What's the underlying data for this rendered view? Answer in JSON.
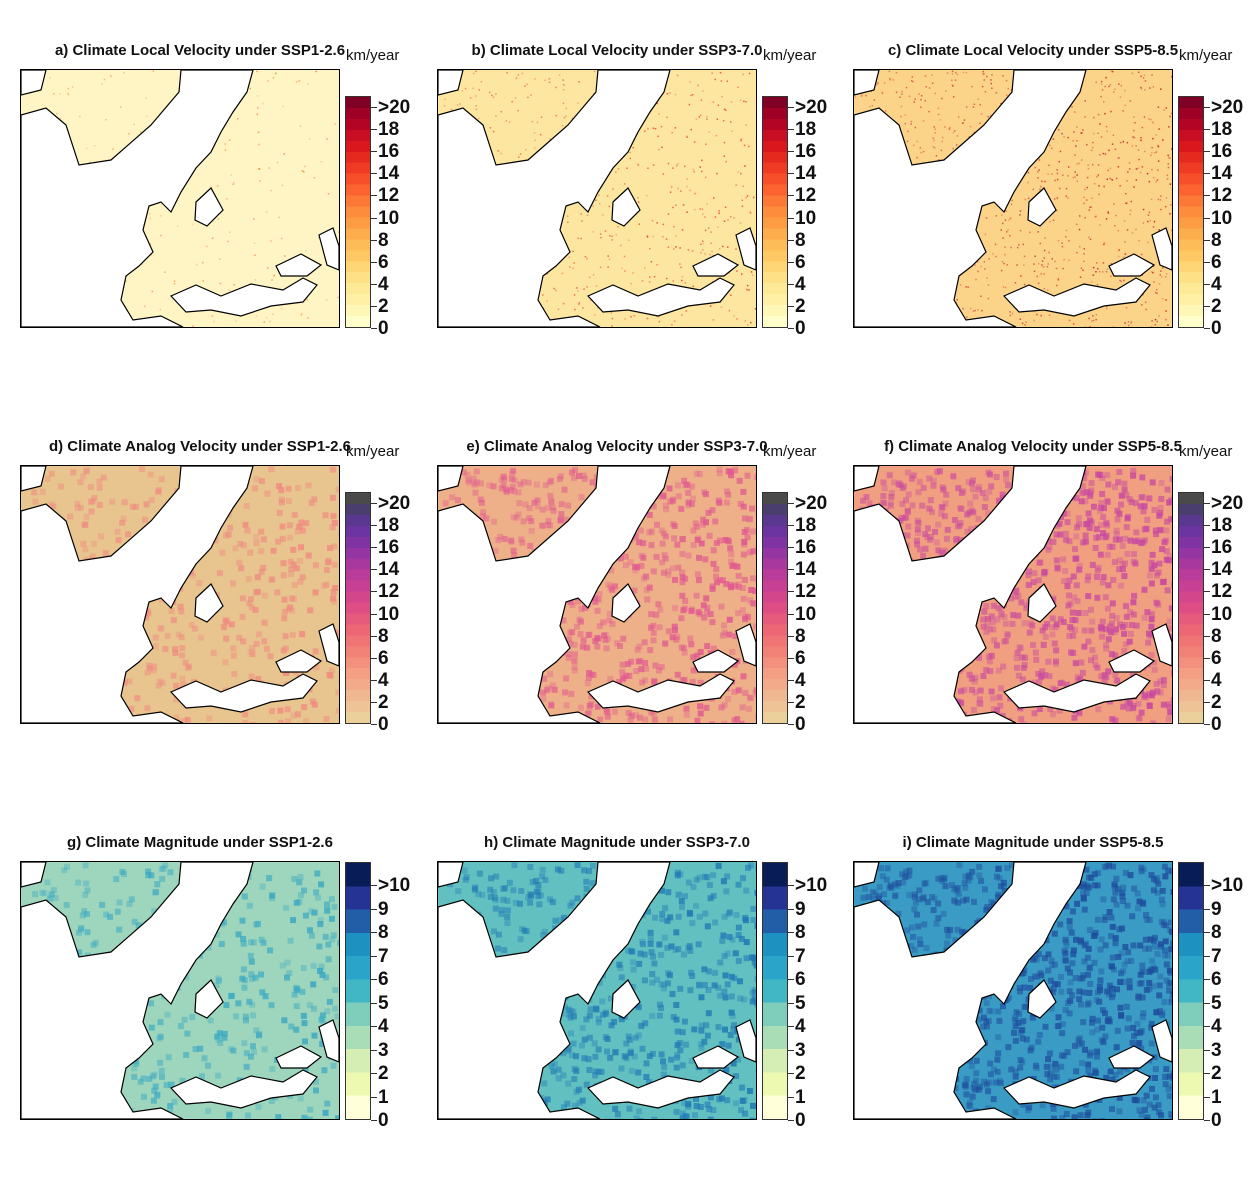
{
  "panels": [
    {
      "title": "a) Climate Local Velocity under SSP1-2.6",
      "unit": "km/year",
      "scale": "local",
      "land": "#fff5c4",
      "hot": "#f08030",
      "level": 0.15
    },
    {
      "title": "b) Climate Local Velocity under SSP3-7.0",
      "unit": "km/year",
      "scale": "local",
      "land": "#fde6a0",
      "hot": "#e03020",
      "level": 0.45
    },
    {
      "title": "c) Climate Local Velocity under SSP5-8.5",
      "unit": "km/year",
      "scale": "local",
      "land": "#fbd48a",
      "hot": "#c01020",
      "level": 0.7
    },
    {
      "title": "d) Climate Analog Velocity under SSP1-2.6",
      "unit": "km/year",
      "scale": "analog",
      "land": "#e8c48e",
      "hot": "#f08a80",
      "level": 0.3
    },
    {
      "title": "e) Climate Analog Velocity under SSP3-7.0",
      "unit": "km/year",
      "scale": "analog",
      "land": "#eeb088",
      "hot": "#e05890",
      "level": 0.55
    },
    {
      "title": "f) Climate Analog Velocity under SSP5-8.5",
      "unit": "km/year",
      "scale": "analog",
      "land": "#f0a080",
      "hot": "#c848a0",
      "level": 0.7
    },
    {
      "title": "g) Climate Magnitude under SSP1-2.6",
      "unit": "",
      "scale": "magnitude",
      "land": "#9dd6bd",
      "hot": "#3aa8c2",
      "level": 0.3
    },
    {
      "title": "h) Climate Magnitude under SSP3-7.0",
      "unit": "",
      "scale": "magnitude",
      "land": "#62c0c0",
      "hot": "#1f78b4",
      "level": 0.5
    },
    {
      "title": "i) Climate Magnitude under SSP5-8.5",
      "unit": "",
      "scale": "magnitude",
      "land": "#3a9cc4",
      "hot": "#1e4c9c",
      "level": 0.7
    }
  ],
  "scales": {
    "local": {
      "ticks": [
        "0",
        "2",
        "4",
        "6",
        "8",
        "10",
        "12",
        "14",
        "16",
        "18",
        ">20"
      ],
      "colors": [
        "#ffffcc",
        "#fff7b8",
        "#fff0a6",
        "#feea96",
        "#fee087",
        "#fed676",
        "#fec965",
        "#febc58",
        "#fdad4c",
        "#fd9d43",
        "#fd8d3c",
        "#fc7836",
        "#fc6330",
        "#f84f2b",
        "#f03b24",
        "#e6291f",
        "#d9171c",
        "#c90d23",
        "#b40426",
        "#9e0026",
        "#800026"
      ]
    },
    "analog": {
      "ticks": [
        "0",
        "2",
        "4",
        "6",
        "8",
        "10",
        "12",
        "14",
        "16",
        "18",
        ">20"
      ],
      "colors": [
        "#ecd09c",
        "#eec496",
        "#f0b890",
        "#f2aa8a",
        "#f49e84",
        "#f4907e",
        "#f28278",
        "#f07474",
        "#ec6676",
        "#e65a7c",
        "#de4e84",
        "#d4468c",
        "#c84094",
        "#ba3c9a",
        "#a8389e",
        "#9436a2",
        "#8034a4",
        "#6c34a0",
        "#5a3890",
        "#4a3e6e",
        "#4a4a4a"
      ]
    },
    "magnitude": {
      "ticks": [
        "0",
        "1",
        "2",
        "3",
        "4",
        "5",
        "6",
        "7",
        "8",
        "9",
        ">10"
      ],
      "colors": [
        "#ffffd9",
        "#edf8b1",
        "#d4eeb4",
        "#a8ddb5",
        "#7fcdbb",
        "#41b6c4",
        "#2aa4c8",
        "#1d91c0",
        "#225ea8",
        "#253494",
        "#081d58"
      ]
    }
  }
}
